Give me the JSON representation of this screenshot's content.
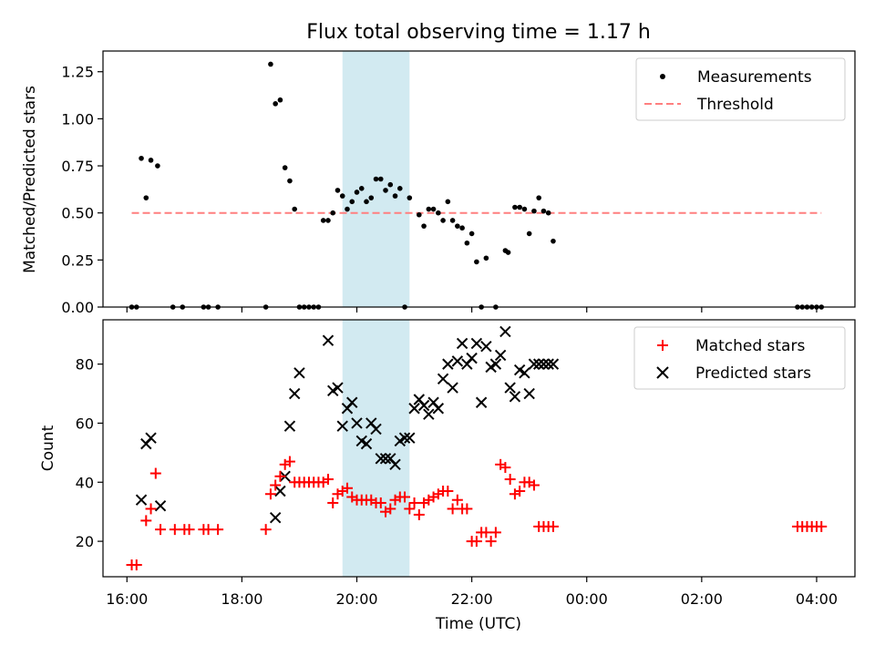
{
  "title": "Flux total observing time = 1.17 h",
  "colors": {
    "measurement": "#000000",
    "threshold": "#ff7f7f",
    "matched": "#ff0000",
    "predicted": "#000000",
    "shade": "#add8e6"
  },
  "chart_data": [
    {
      "type": "scatter",
      "ylabel": "Matched/Predicted stars",
      "ylim": [
        0,
        1.36
      ],
      "yticks": [
        0.0,
        0.25,
        0.5,
        0.75,
        1.0,
        1.25
      ],
      "ytick_labels": [
        "0.00",
        "0.25",
        "0.50",
        "0.75",
        "1.00",
        "1.25"
      ],
      "legend": [
        "Measurements",
        "Threshold"
      ],
      "legend_position": "upper right",
      "shaded_span": [
        "19:45",
        "20:55"
      ],
      "threshold": {
        "value": 0.5,
        "x": [
          "16:05",
          "04:05"
        ]
      },
      "series": [
        {
          "name": "Measurements",
          "x": [
            "16:05",
            "16:10",
            "16:15",
            "16:20",
            "16:25",
            "16:32",
            "16:48",
            "16:58",
            "17:20",
            "17:25",
            "17:35",
            "18:25",
            "18:30",
            "18:35",
            "18:40",
            "18:45",
            "18:50",
            "18:55",
            "19:00",
            "19:05",
            "19:10",
            "19:15",
            "19:20",
            "19:25",
            "19:30",
            "19:35",
            "19:40",
            "19:45",
            "19:50",
            "19:55",
            "20:00",
            "20:05",
            "20:10",
            "20:15",
            "20:20",
            "20:25",
            "20:30",
            "20:35",
            "20:40",
            "20:45",
            "20:50",
            "20:55",
            "21:05",
            "21:10",
            "21:15",
            "21:20",
            "21:25",
            "21:30",
            "21:35",
            "21:40",
            "21:45",
            "21:50",
            "21:55",
            "22:00",
            "22:05",
            "22:10",
            "22:15",
            "22:25",
            "22:35",
            "22:38",
            "22:45",
            "22:50",
            "22:55",
            "23:00",
            "23:05",
            "23:10",
            "23:15",
            "23:20",
            "23:25",
            "03:40",
            "03:45",
            "03:50",
            "03:55",
            "04:00",
            "04:05"
          ],
          "y": [
            0.0,
            0.0,
            0.79,
            0.58,
            0.78,
            0.75,
            0.0,
            0.0,
            0.0,
            0.0,
            0.0,
            0.0,
            1.29,
            1.08,
            1.1,
            0.74,
            0.67,
            0.52,
            0.0,
            0.0,
            0.0,
            0.0,
            0.0,
            0.46,
            0.46,
            0.5,
            0.62,
            0.59,
            0.52,
            0.56,
            0.61,
            0.63,
            0.56,
            0.58,
            0.68,
            0.68,
            0.62,
            0.65,
            0.59,
            0.63,
            0.0,
            0.58,
            0.49,
            0.43,
            0.52,
            0.52,
            0.5,
            0.46,
            0.56,
            0.46,
            0.43,
            0.42,
            0.34,
            0.39,
            0.24,
            0.0,
            0.26,
            0.0,
            0.3,
            0.29,
            0.53,
            0.53,
            0.52,
            0.39,
            0.51,
            0.58,
            0.51,
            0.5,
            0.35,
            0.0,
            0.0,
            0.0,
            0.0,
            0.0,
            0.0
          ]
        }
      ]
    },
    {
      "type": "scatter",
      "xlabel": "Time (UTC)",
      "ylabel": "Count",
      "ylim": [
        8,
        95
      ],
      "yticks": [
        20,
        40,
        60,
        80
      ],
      "xticks": [
        "16:00",
        "18:00",
        "20:00",
        "22:00",
        "00:00",
        "02:00",
        "04:00"
      ],
      "xlim": [
        "15:35",
        "04:40"
      ],
      "legend": [
        "Matched stars",
        "Predicted stars"
      ],
      "legend_position": "upper right",
      "shaded_span": [
        "19:45",
        "20:55"
      ],
      "series": [
        {
          "name": "Matched stars",
          "x": [
            "16:05",
            "16:10",
            "16:20",
            "16:25",
            "16:30",
            "16:35",
            "16:50",
            "17:00",
            "17:05",
            "17:20",
            "17:25",
            "17:35",
            "18:25",
            "18:30",
            "18:35",
            "18:40",
            "18:45",
            "18:50",
            "18:55",
            "19:00",
            "19:05",
            "19:10",
            "19:15",
            "19:20",
            "19:25",
            "19:30",
            "19:35",
            "19:40",
            "19:45",
            "19:50",
            "19:55",
            "20:00",
            "20:05",
            "20:10",
            "20:15",
            "20:20",
            "20:25",
            "20:30",
            "20:35",
            "20:40",
            "20:45",
            "20:50",
            "20:55",
            "21:00",
            "21:05",
            "21:10",
            "21:15",
            "21:20",
            "21:25",
            "21:30",
            "21:35",
            "21:40",
            "21:45",
            "21:50",
            "21:55",
            "22:00",
            "22:05",
            "22:10",
            "22:15",
            "22:20",
            "22:25",
            "22:30",
            "22:35",
            "22:40",
            "22:45",
            "22:50",
            "22:55",
            "23:00",
            "23:05",
            "23:10",
            "23:15",
            "23:20",
            "23:25",
            "03:40",
            "03:45",
            "03:50",
            "03:55",
            "04:00",
            "04:05"
          ],
          "y": [
            12,
            12,
            27,
            31,
            43,
            24,
            24,
            24,
            24,
            24,
            24,
            24,
            24,
            36,
            39,
            42,
            46,
            47,
            40,
            40,
            40,
            40,
            40,
            40,
            40,
            41,
            33,
            36,
            37,
            38,
            35,
            34,
            34,
            34,
            34,
            33,
            33,
            30,
            31,
            34,
            35,
            35,
            31,
            33,
            29,
            33,
            34,
            35,
            36,
            37,
            37,
            31,
            34,
            31,
            31,
            20,
            20,
            23,
            23,
            20,
            23,
            46,
            45,
            41,
            36,
            37,
            40,
            40,
            39,
            25,
            25,
            25,
            25,
            25,
            25,
            25,
            25,
            25,
            25
          ]
        },
        {
          "name": "Predicted stars",
          "x": [
            "16:15",
            "16:20",
            "16:25",
            "16:35",
            "18:35",
            "18:40",
            "18:45",
            "18:50",
            "18:55",
            "19:00",
            "19:30",
            "19:35",
            "19:40",
            "19:45",
            "19:50",
            "19:55",
            "20:00",
            "20:05",
            "20:10",
            "20:15",
            "20:20",
            "20:25",
            "20:30",
            "20:35",
            "20:40",
            "20:45",
            "20:50",
            "20:55",
            "21:00",
            "21:05",
            "21:10",
            "21:15",
            "21:20",
            "21:25",
            "21:30",
            "21:35",
            "21:40",
            "21:45",
            "21:50",
            "21:55",
            "22:00",
            "22:05",
            "22:10",
            "22:15",
            "22:20",
            "22:25",
            "22:30",
            "22:35",
            "22:40",
            "22:45",
            "22:50",
            "22:55",
            "23:00",
            "23:05",
            "23:10",
            "23:15",
            "23:20",
            "23:25"
          ],
          "y": [
            34,
            53,
            55,
            32,
            28,
            37,
            42,
            59,
            70,
            77,
            88,
            71,
            72,
            59,
            65,
            67,
            60,
            54,
            53,
            60,
            58,
            48,
            48,
            48,
            46,
            54,
            55,
            55,
            65,
            68,
            66,
            63,
            67,
            65,
            75,
            80,
            72,
            81,
            87,
            80,
            82,
            87,
            67,
            86,
            79,
            80,
            83,
            91,
            72,
            69,
            78,
            77,
            70,
            80,
            80,
            80,
            80,
            80
          ]
        }
      ]
    }
  ]
}
